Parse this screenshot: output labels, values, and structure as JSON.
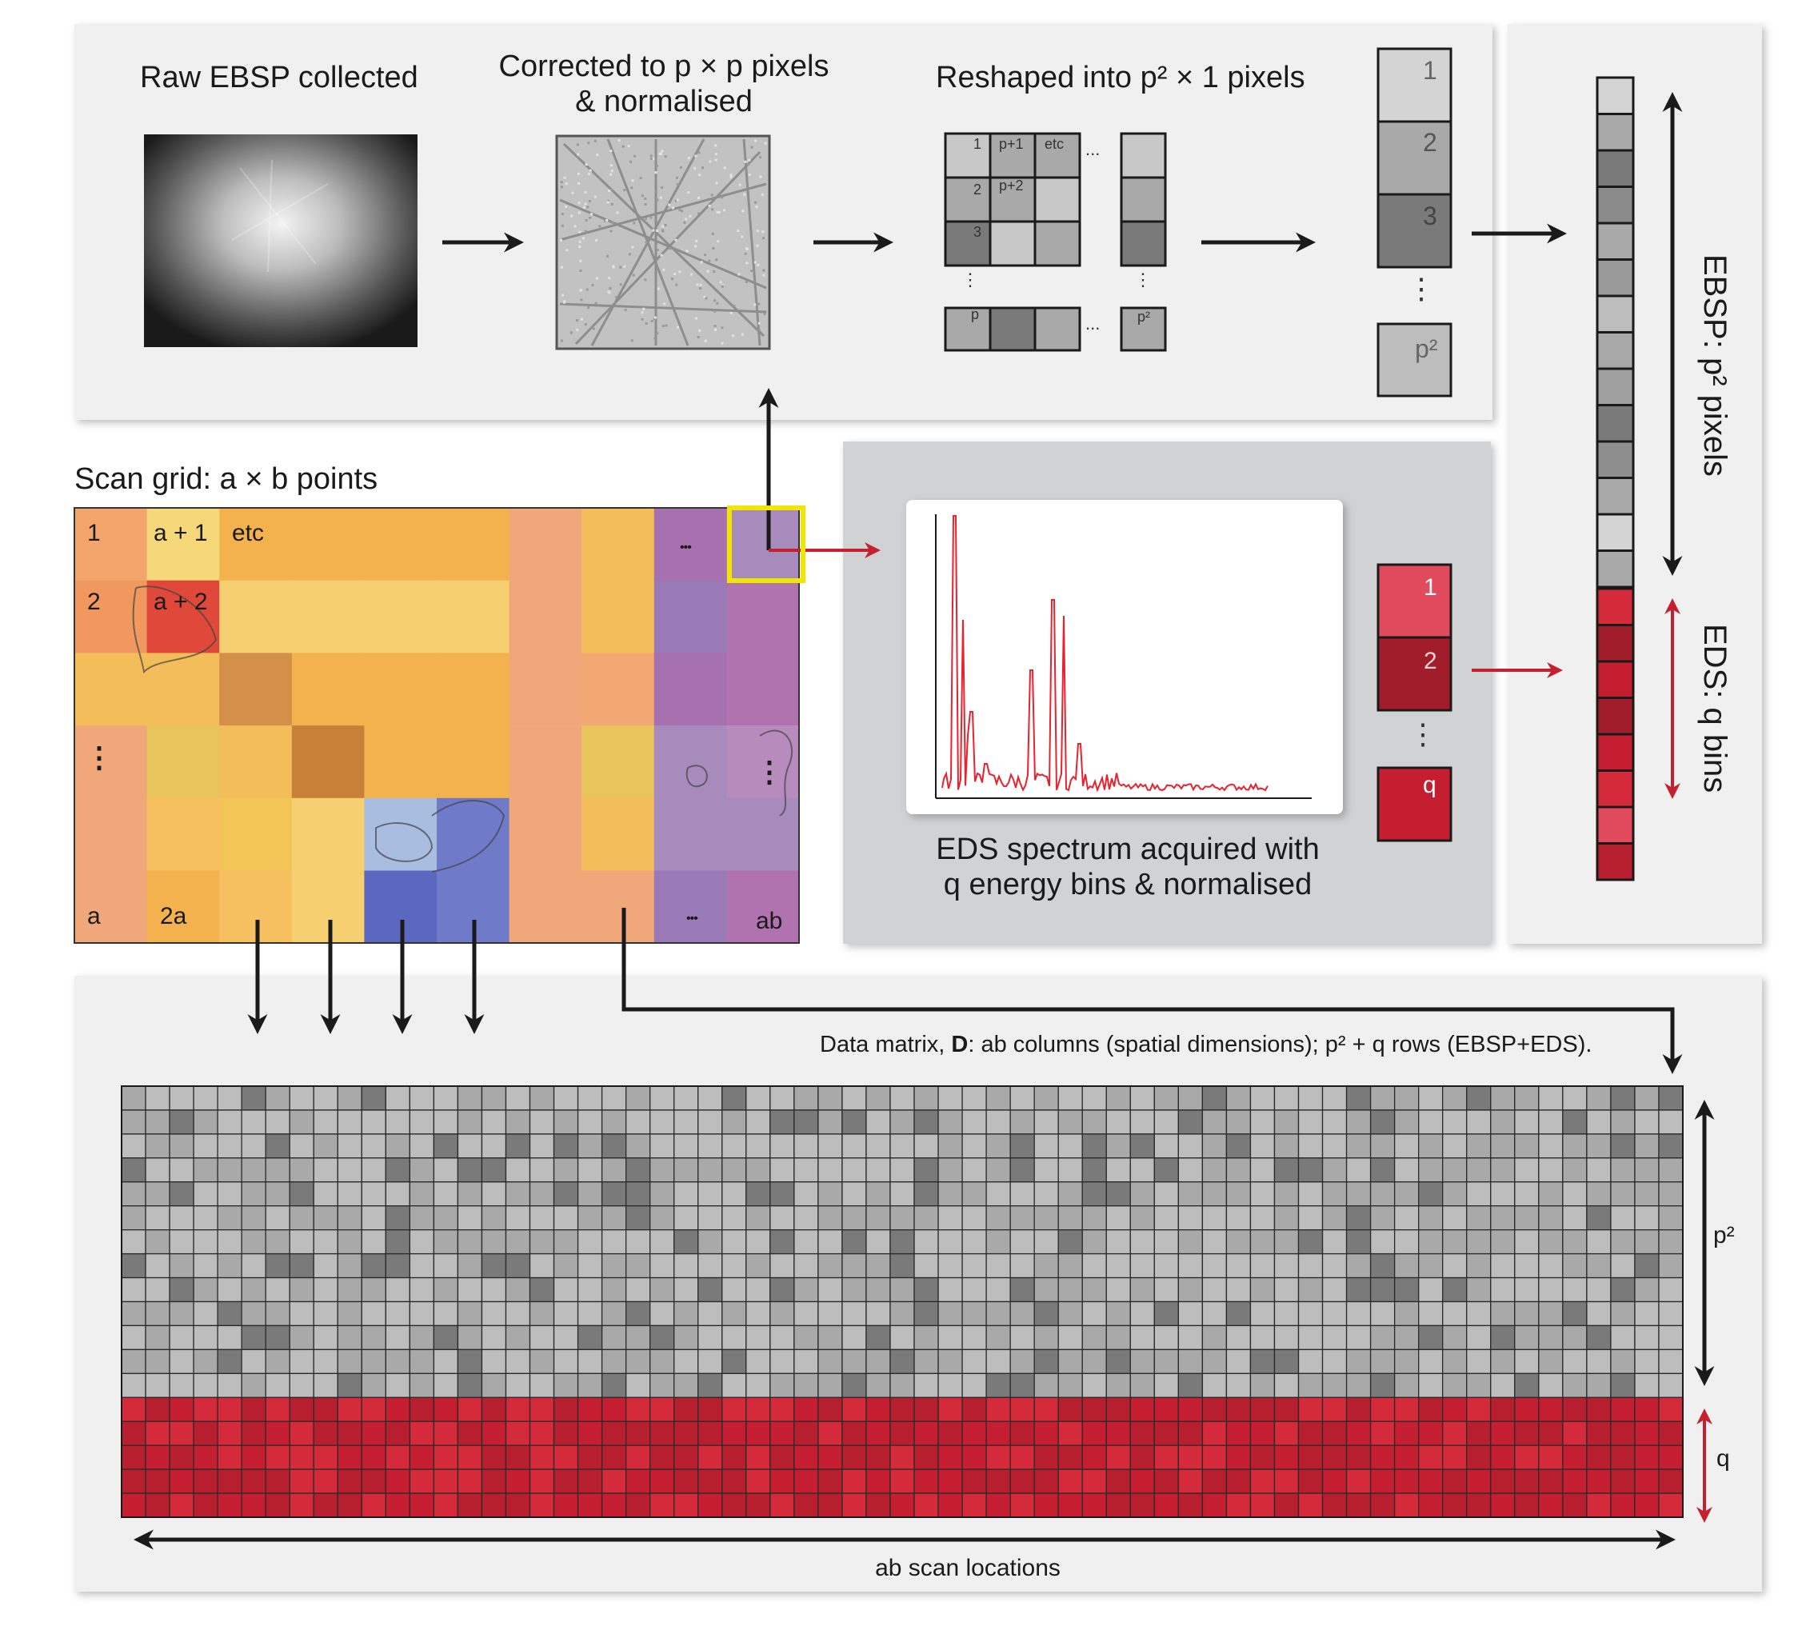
{
  "panel1": {
    "raw_title": "Raw EBSP collected",
    "corrected_title_1": "Corrected to p × p pixels",
    "corrected_title_2": "& normalised",
    "reshaped_title": "Reshaped into p² × 1 pixels",
    "grid_labels": [
      "1",
      "p+1",
      "etc",
      "2",
      "p+2",
      "3"
    ],
    "grid_bottom_label": "p",
    "col_bottom_label": "p²",
    "dots_h": "...",
    "dots_v": "⋮",
    "stack_labels": [
      "1",
      "2",
      "3"
    ],
    "stack_last": "p²",
    "stack_dots": "⋮"
  },
  "scan": {
    "title": "Scan grid: a × b points",
    "labels": {
      "r1c1": "1",
      "r1c2": "a + 1",
      "r1c3": "etc",
      "r2c1": "2",
      "r2c2": "a + 2",
      "vdots_left": "⋮",
      "vdots_right": "⋮",
      "bottom_c1": "a",
      "bottom_c2": "2a",
      "dots_top": "•••",
      "dots_bottom": "•••",
      "ab": "ab"
    }
  },
  "eds": {
    "caption_1": "EDS spectrum acquired with",
    "caption_2": "q energy bins & normalised",
    "bin_labels": [
      "1",
      "2",
      "q"
    ],
    "bin_dots": "⋮"
  },
  "vector": {
    "ebsp_label": "EBSP: p² pixels",
    "eds_label": "EDS: q bins"
  },
  "matrix": {
    "caption_prefix": "Data matrix, ",
    "caption_bold": "D",
    "caption_suffix": ": ab columns (spatial dimensions); p² + q rows (EBSP+EDS).",
    "p2_label": "p²",
    "q_label": "q",
    "x_label": "ab scan locations"
  },
  "colors": {
    "panel_bg": "#f0f0f0",
    "eds_panel_bg": "#d1d2d4",
    "gray_light": "#c8c8c8",
    "gray_mid": "#a9a9a9",
    "gray_dark": "#7a7a7a",
    "red_bright": "#d42a3a",
    "red_dark": "#a11d2c",
    "red_pink": "#e04a5c",
    "spectrum": "#e8222e",
    "arrow_red": "#c4202f",
    "highlight": "#f2e500"
  }
}
